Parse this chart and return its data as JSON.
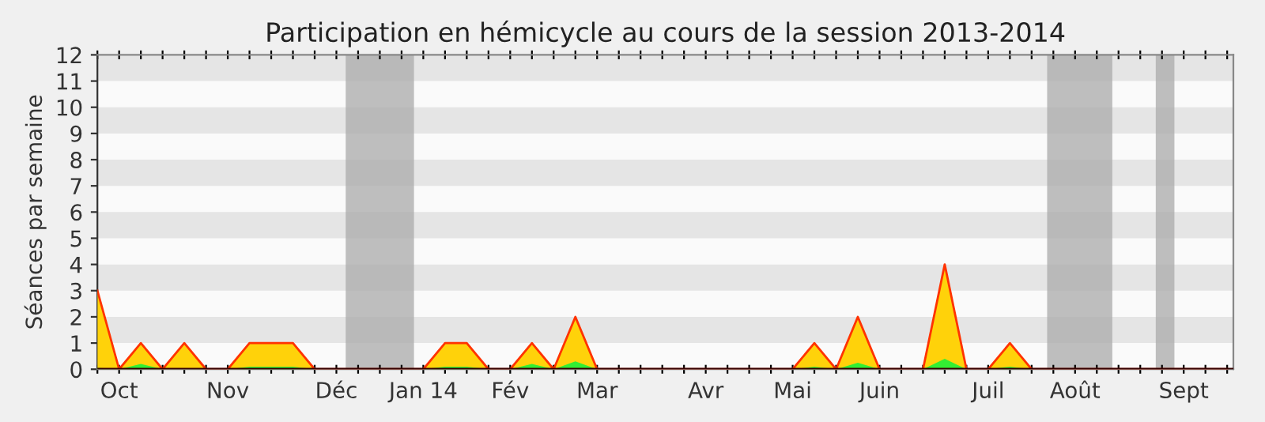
{
  "chart_data": {
    "type": "area",
    "title": "Participation en hémicycle au cours de la session 2013-2014",
    "ylabel": "Séances par semaine",
    "x": [
      "2013-09-24",
      "2013-10-01",
      "2013-10-08",
      "2013-10-15",
      "2013-10-22",
      "2013-10-29",
      "2013-11-05",
      "2013-11-12",
      "2013-11-19",
      "2013-11-26",
      "2013-12-03",
      "2013-12-10",
      "2013-12-17",
      "2013-12-24",
      "2013-12-31",
      "2014-01-07",
      "2014-01-14",
      "2014-01-21",
      "2014-01-28",
      "2014-02-04",
      "2014-02-11",
      "2014-02-18",
      "2014-02-25",
      "2014-03-04",
      "2014-03-11",
      "2014-03-18",
      "2014-03-25",
      "2014-04-01",
      "2014-04-08",
      "2014-04-15",
      "2014-04-22",
      "2014-04-29",
      "2014-05-06",
      "2014-05-13",
      "2014-05-20",
      "2014-05-27",
      "2014-06-03",
      "2014-06-10",
      "2014-06-17",
      "2014-06-24",
      "2014-07-01",
      "2014-07-08",
      "2014-07-15",
      "2014-07-22",
      "2014-07-29",
      "2014-08-05",
      "2014-08-12",
      "2014-08-19",
      "2014-08-26",
      "2014-09-02",
      "2014-09-09",
      "2014-09-16",
      "2014-09-23"
    ],
    "series": [
      {
        "color": "#ffd20a",
        "values": [
          3,
          0,
          1,
          0,
          1,
          0,
          0,
          1,
          1,
          1,
          0,
          0,
          0,
          0,
          0,
          0,
          1,
          1,
          0,
          0,
          1,
          0,
          2,
          0,
          0,
          0,
          0,
          0,
          0,
          0,
          0,
          0,
          0,
          1,
          0,
          2,
          0,
          0,
          0,
          4,
          0,
          0,
          1,
          0,
          0,
          0,
          0,
          0,
          0,
          0,
          0,
          0,
          0
        ]
      },
      {
        "color": "#33ee33",
        "values": [
          0.05,
          0,
          0.2,
          0,
          0,
          0,
          0,
          0.1,
          0.1,
          0.1,
          0,
          0,
          0,
          0,
          0,
          0,
          0.1,
          0.1,
          0,
          0,
          0.2,
          0,
          0.3,
          0,
          0,
          0,
          0,
          0,
          0,
          0,
          0,
          0,
          0,
          0.1,
          0,
          0.25,
          0,
          0,
          0,
          0.4,
          0,
          0,
          0.1,
          0,
          0,
          0,
          0,
          0,
          0,
          0,
          0,
          0,
          0
        ]
      }
    ],
    "xlim": [
      "2013-09-24",
      "2014-09-25"
    ],
    "xticks": [
      {
        "value": "2013-09-24",
        "label": null
      },
      {
        "value": "2013-10-01",
        "label": "Oct"
      },
      {
        "value": "2013-10-08",
        "label": null
      },
      {
        "value": "2013-10-15",
        "label": null
      },
      {
        "value": "2013-10-22",
        "label": null
      },
      {
        "value": "2013-10-29",
        "label": null
      },
      {
        "value": "2013-11-05",
        "label": "Nov"
      },
      {
        "value": "2013-11-12",
        "label": null
      },
      {
        "value": "2013-11-19",
        "label": null
      },
      {
        "value": "2013-11-26",
        "label": null
      },
      {
        "value": "2013-12-03",
        "label": null
      },
      {
        "value": "2013-12-10",
        "label": "Déc"
      },
      {
        "value": "2013-12-17",
        "label": null
      },
      {
        "value": "2013-12-24",
        "label": null
      },
      {
        "value": "2013-12-31",
        "label": null
      },
      {
        "value": "2014-01-07",
        "label": "Jan 14"
      },
      {
        "value": "2014-01-14",
        "label": null
      },
      {
        "value": "2014-01-21",
        "label": null
      },
      {
        "value": "2014-01-28",
        "label": null
      },
      {
        "value": "2014-02-04",
        "label": "Fév"
      },
      {
        "value": "2014-02-11",
        "label": null
      },
      {
        "value": "2014-02-18",
        "label": null
      },
      {
        "value": "2014-02-25",
        "label": null
      },
      {
        "value": "2014-03-04",
        "label": "Mar"
      },
      {
        "value": "2014-03-11",
        "label": null
      },
      {
        "value": "2014-03-18",
        "label": null
      },
      {
        "value": "2014-03-25",
        "label": null
      },
      {
        "value": "2014-04-01",
        "label": null
      },
      {
        "value": "2014-04-08",
        "label": "Avr"
      },
      {
        "value": "2014-04-15",
        "label": null
      },
      {
        "value": "2014-04-22",
        "label": null
      },
      {
        "value": "2014-04-29",
        "label": null
      },
      {
        "value": "2014-05-06",
        "label": "Mai"
      },
      {
        "value": "2014-05-13",
        "label": null
      },
      {
        "value": "2014-05-20",
        "label": null
      },
      {
        "value": "2014-05-27",
        "label": null
      },
      {
        "value": "2014-06-03",
        "label": "Juin"
      },
      {
        "value": "2014-06-10",
        "label": null
      },
      {
        "value": "2014-06-17",
        "label": null
      },
      {
        "value": "2014-06-24",
        "label": null
      },
      {
        "value": "2014-07-01",
        "label": null
      },
      {
        "value": "2014-07-08",
        "label": "Juil"
      },
      {
        "value": "2014-07-15",
        "label": null
      },
      {
        "value": "2014-07-22",
        "label": null
      },
      {
        "value": "2014-07-29",
        "label": null
      },
      {
        "value": "2014-08-05",
        "label": "Août"
      },
      {
        "value": "2014-08-12",
        "label": null
      },
      {
        "value": "2014-08-19",
        "label": null
      },
      {
        "value": "2014-08-26",
        "label": null
      },
      {
        "value": "2014-09-02",
        "label": null
      },
      {
        "value": "2014-09-09",
        "label": "Sept"
      },
      {
        "value": "2014-09-16",
        "label": null
      },
      {
        "value": "2014-09-23",
        "label": null
      }
    ],
    "ylim": [
      0,
      12
    ],
    "yticks": [
      0,
      1,
      2,
      3,
      4,
      5,
      6,
      7,
      8,
      9,
      10,
      11,
      12
    ],
    "bands": [
      {
        "axis": "y",
        "from": 1,
        "to": 2,
        "color": "#dddddd"
      },
      {
        "axis": "y",
        "from": 3,
        "to": 4,
        "color": "#dddddd"
      },
      {
        "axis": "y",
        "from": 5,
        "to": 6,
        "color": "#dddddd"
      },
      {
        "axis": "y",
        "from": 7,
        "to": 8,
        "color": "#dddddd"
      },
      {
        "axis": "y",
        "from": 9,
        "to": 10,
        "color": "#dddddd"
      },
      {
        "axis": "y",
        "from": 11,
        "to": 12,
        "color": "#dddddd"
      },
      {
        "axis": "x",
        "from": "2013-12-13",
        "to": "2014-01-04",
        "color": "#aaaaaa"
      },
      {
        "axis": "x",
        "from": "2014-07-27",
        "to": "2014-08-17",
        "color": "#aaaaaa"
      },
      {
        "axis": "x",
        "from": "2014-08-31",
        "to": "2014-09-06",
        "color": "#aaaaaa"
      }
    ]
  }
}
